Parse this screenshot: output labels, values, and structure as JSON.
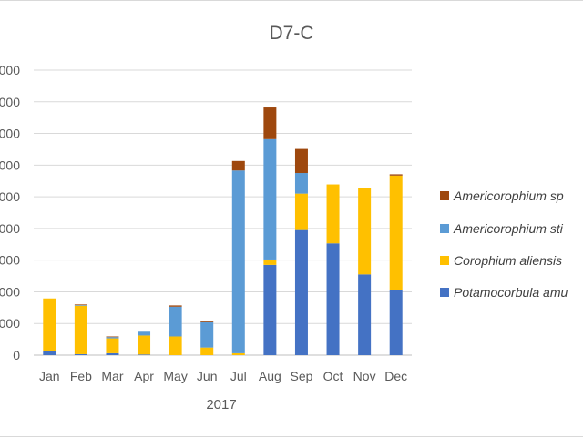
{
  "chart_data": {
    "type": "bar",
    "stacked": true,
    "title": "D7-C",
    "xlabel": "2017",
    "ylabel": "",
    "categories": [
      "Jan",
      "Feb",
      "Mar",
      "Apr",
      "May",
      "Jun",
      "Jul",
      "Aug",
      "Sep",
      "Oct",
      "Nov",
      "Dec"
    ],
    "ylim": [
      0,
      9000
    ],
    "yticks": [
      0,
      1000,
      2000,
      3000,
      4000,
      5000,
      6000,
      7000,
      8000,
      9000
    ],
    "ytick_labels": [
      "0",
      "000",
      "000",
      "000",
      "000",
      "000",
      "000",
      "000",
      "000",
      "000"
    ],
    "grid": true,
    "legend_position": "right",
    "series": [
      {
        "name": "Potamocorbula amu",
        "color": "#4472c4",
        "values": [
          120,
          30,
          60,
          20,
          0,
          0,
          0,
          2850,
          3950,
          3530,
          2550,
          2050
        ]
      },
      {
        "name": "Corophium aliensis",
        "color": "#ffc000",
        "values": [
          1670,
          1530,
          470,
          600,
          590,
          240,
          60,
          170,
          1150,
          1860,
          2720,
          3620
        ]
      },
      {
        "name": "Americorophium sti",
        "color": "#5b9bd5",
        "values": [
          0,
          20,
          40,
          120,
          940,
          800,
          5770,
          3800,
          650,
          0,
          0,
          0
        ]
      },
      {
        "name": "Americorophium sp",
        "color": "#9e480e",
        "values": [
          0,
          20,
          20,
          0,
          40,
          40,
          300,
          1000,
          760,
          0,
          0,
          40
        ]
      }
    ]
  }
}
